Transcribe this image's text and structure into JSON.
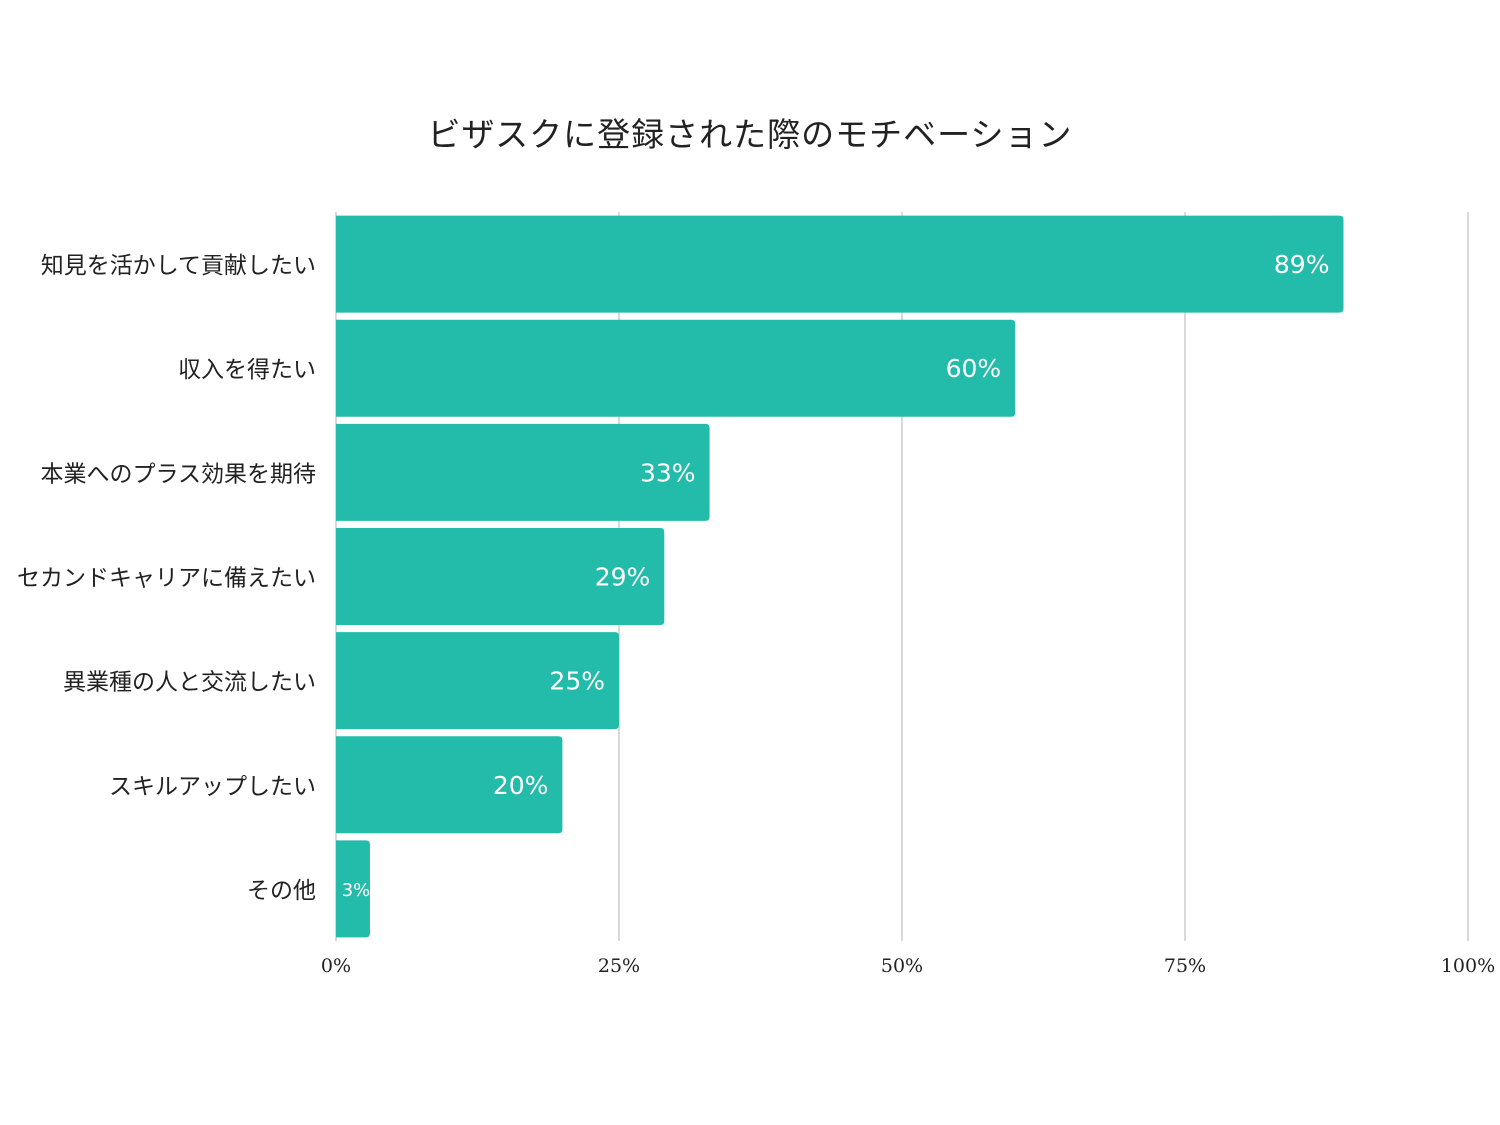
{
  "chart_data": {
    "type": "bar",
    "orientation": "horizontal",
    "title": "ビザスクに登録された際のモチベーション",
    "categories": [
      "知見を活かして貢献したい",
      "収入を得たい",
      "本業へのプラス効果を期待",
      "セカンドキャリアに備えたい",
      "異業種の人と交流したい",
      "スキルアップしたい",
      "その他"
    ],
    "values": [
      89,
      60,
      33,
      29,
      25,
      20,
      3
    ],
    "data_labels": [
      "89%",
      "60%",
      "33%",
      "29%",
      "25%",
      "20%",
      "3%"
    ],
    "xlim": [
      0,
      100
    ],
    "xticks": [
      0,
      25,
      50,
      75,
      100
    ],
    "xtick_labels": [
      "0%",
      "25%",
      "50%",
      "75%",
      "100%"
    ],
    "grid": true,
    "legend": "none",
    "bar_color": "#23bba9",
    "grid_color": "#d9d9d9"
  }
}
